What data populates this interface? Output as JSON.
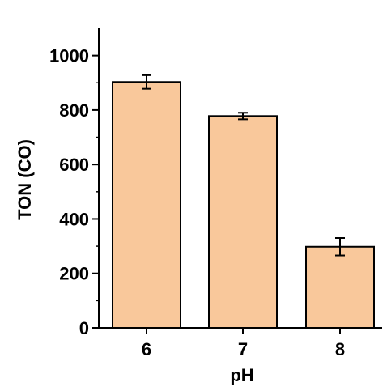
{
  "chart_data": {
    "type": "bar",
    "categories": [
      "6",
      "7",
      "8"
    ],
    "values": [
      903,
      778,
      298
    ],
    "errors": [
      25,
      12,
      32
    ],
    "xlabel": "pH",
    "ylabel": "TON (CO)",
    "ylim": [
      0,
      1100
    ],
    "yticks": [
      0,
      200,
      400,
      600,
      800,
      1000
    ],
    "bar_color": "#f9c89b",
    "bar_edge_color": "#000000",
    "grid": false
  }
}
